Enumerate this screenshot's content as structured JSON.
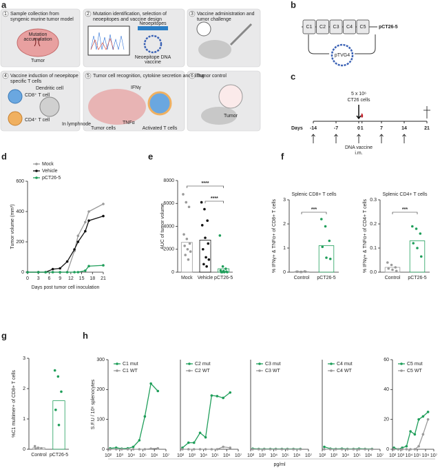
{
  "panel_labels": [
    "a",
    "b",
    "c",
    "d",
    "e",
    "f",
    "g",
    "h"
  ],
  "panel_a": {
    "steps": [
      {
        "number": 1,
        "lines": [
          "Sample collection from",
          "syngenic murine tumor model"
        ]
      },
      {
        "number": 2,
        "lines": [
          "Mutation identification, selection of",
          "neoepitopes and vaccine design"
        ]
      },
      {
        "number": 3,
        "lines": [
          "Vaccine administration and",
          "tumor challenge"
        ]
      },
      {
        "number": 4,
        "lines": [
          "Vaccine induction of neoepitope",
          "specific T cells"
        ]
      },
      {
        "number": 5,
        "lines": [
          "Tumor cell recognition, cytokine secretion and killing"
        ]
      },
      {
        "number": 6,
        "lines": [
          "Tumor control"
        ]
      }
    ],
    "labels": [
      "Mutation",
      "accumulation",
      "Tumor",
      "Neoepitopes",
      "Neoepitope DNA",
      "vaccine",
      "Dendritic cell",
      "CD8⁺ T cell",
      "CD4⁺ T cell",
      "In lymphnode",
      "IFNγ",
      "TNFα",
      "Tumor cells",
      "Activated T cells",
      "Tumor"
    ]
  },
  "panel_b": {
    "segments": [
      "C1",
      "C2",
      "C3",
      "C4",
      "C5"
    ],
    "construct": "pCT26-5",
    "backbone": "pTVG4"
  },
  "panel_c": {
    "days_label": "Days",
    "days": [
      -14,
      -7,
      0,
      1,
      7,
      14,
      21
    ],
    "vaccine_days": [
      -14,
      -7,
      0,
      7,
      14
    ],
    "challenge_label": [
      "5 x 10⁶",
      "CT26 cells"
    ],
    "vaccine_label": [
      "DNA vaccine",
      "i.m."
    ]
  },
  "chart_data": [
    {
      "type": "line",
      "x": [
        0,
        3,
        5,
        7,
        9,
        11,
        13,
        14,
        16,
        17,
        21
      ],
      "xlim": [
        0,
        21
      ],
      "xticks": [
        0,
        3,
        6,
        9,
        12,
        15,
        18,
        21
      ],
      "ylim": [
        0,
        600
      ],
      "yticks": [
        0,
        200,
        400,
        600
      ],
      "xlabel": "Days post tumor cell inoculation",
      "ylabel": "Tumor volume (mm³)",
      "legend": "upper left",
      "series": [
        {
          "name": "Mock",
          "color": "#9a9a9a",
          "values": [
            0,
            0,
            0,
            0,
            0,
            0,
            140,
            240,
            330,
            400,
            450
          ]
        },
        {
          "name": "Vehicle",
          "color": "#111111",
          "values": [
            0,
            0,
            0,
            20,
            25,
            70,
            150,
            200,
            270,
            340,
            370
          ]
        },
        {
          "name": "pCT26-5",
          "color": "#1f9e5a",
          "values": [
            0,
            0,
            0,
            0,
            0,
            0,
            0,
            0,
            10,
            40,
            45
          ]
        }
      ]
    },
    {
      "type": "dot_bar",
      "categories": [
        "Mock",
        "Vehicle",
        "pCT26-5"
      ],
      "values": [
        2600,
        2800,
        300
      ],
      "colors": [
        "#9a9a9a",
        "#111111",
        "#1f9e5a"
      ],
      "points": [
        [
          6800,
          6100,
          5700,
          3300,
          2900,
          2500,
          2300,
          2000,
          1800,
          1500,
          1100
        ],
        [
          6100,
          5500,
          4500,
          4100,
          3000,
          2500,
          2000,
          1300,
          1100,
          700,
          500
        ],
        [
          3200,
          500,
          300,
          150,
          100,
          50,
          0,
          0,
          0,
          0
        ]
      ],
      "ylim": [
        0,
        8000
      ],
      "yticks": [
        0,
        2000,
        4000,
        6000,
        8000
      ],
      "ylabel": "AUC of tumor volume",
      "annotations": [
        "****",
        "****"
      ]
    },
    {
      "type": "dot_bar",
      "title": "Splenic CD8+ T cells",
      "categories": [
        "Control",
        "pCT26-5"
      ],
      "values": [
        0.02,
        1.1
      ],
      "colors": [
        "#9a9a9a",
        "#1f9e5a"
      ],
      "points": [
        [
          0.02,
          0.01,
          0.03,
          0.02,
          0.01,
          0.02
        ],
        [
          2.2,
          1.9,
          1.3,
          1.05,
          0.6,
          0.55
        ]
      ],
      "ylim": [
        0,
        3
      ],
      "yticks": [
        0,
        1,
        2,
        3
      ],
      "ylabel": "% IFNγ+ & TNFα+ of CD8+ T cells",
      "annotations": [
        "***"
      ]
    },
    {
      "type": "dot_bar",
      "title": "Splenic CD4+ T cells",
      "categories": [
        "Control",
        "pCT26-5"
      ],
      "values": [
        0.02,
        0.13
      ],
      "colors": [
        "#9a9a9a",
        "#1f9e5a"
      ],
      "points": [
        [
          0.04,
          0.03,
          0.02,
          0.015,
          0.01,
          0.005
        ],
        [
          0.19,
          0.18,
          0.16,
          0.12,
          0.1,
          0.065
        ]
      ],
      "ylim": [
        0,
        0.3
      ],
      "yticks": [
        {
          "value": 0,
          "label": "0.0"
        },
        0.1,
        0.2,
        0.3
      ],
      "ylabel": "% IFNγ+ & TNFα+ of CD4+ T cells",
      "annotations": [
        "***"
      ]
    },
    {
      "type": "dot_bar",
      "categories": [
        "Control",
        "pCT26-5"
      ],
      "values": [
        0.05,
        1.6
      ],
      "colors": [
        "#9a9a9a",
        "#1f9e5a"
      ],
      "points": [
        [
          0.1,
          0.05,
          0.03,
          0.02
        ],
        [
          2.6,
          2.4,
          1.9,
          1.3,
          0.8
        ]
      ],
      "ylim": [
        0,
        3
      ],
      "yticks": [
        0,
        1,
        2,
        3
      ],
      "ylabel": "%C1 multimer+ of CD8+ T cells"
    },
    {
      "type": "line",
      "xscale": "log",
      "x": [
        150,
        500,
        1500,
        5000,
        15000,
        50000,
        150000,
        500000,
        2000000
      ],
      "xlim": [
        100,
        10000000
      ],
      "xticks": [
        {
          "value": 100,
          "label": "10²"
        },
        {
          "value": 1000,
          "label": "10³"
        },
        {
          "value": 10000,
          "label": "10⁴"
        },
        {
          "value": 100000,
          "label": "10⁵"
        },
        {
          "value": 1000000,
          "label": "10⁶"
        },
        {
          "value": 10000000,
          "label": "10⁷"
        }
      ],
      "ylim": [
        0,
        300
      ],
      "yticks": [
        0,
        100,
        200,
        300
      ],
      "ylabel": "S.F.U / 10⁶ splenocytes",
      "legend": "upper left",
      "series": [
        {
          "name": "C1 mut",
          "color": "#1f9e5a",
          "values": [
            3,
            5,
            2,
            3,
            8,
            30,
            110,
            220,
            195
          ]
        },
        {
          "name": "C1 WT",
          "color": "#9a9a9a",
          "values": [
            0,
            0,
            0,
            0,
            0,
            0,
            0,
            2,
            3
          ]
        }
      ]
    },
    {
      "type": "line",
      "xscale": "log",
      "x": [
        150,
        500,
        1500,
        5000,
        15000,
        50000,
        150000,
        500000,
        2000000
      ],
      "xlim": [
        100,
        10000000
      ],
      "xticks": [
        {
          "value": 100,
          "label": "10²"
        },
        {
          "value": 1000,
          "label": "10³"
        },
        {
          "value": 10000,
          "label": "10⁴"
        },
        {
          "value": 100000,
          "label": "10⁵"
        },
        {
          "value": 1000000,
          "label": "10⁶"
        },
        {
          "value": 10000000,
          "label": "10⁷"
        }
      ],
      "ylim": [
        0,
        300
      ],
      "legend": "upper left",
      "series": [
        {
          "name": "C2 mut",
          "color": "#1f9e5a",
          "values": [
            5,
            22,
            22,
            55,
            40,
            180,
            178,
            172,
            190
          ]
        },
        {
          "name": "C2 WT",
          "color": "#9a9a9a",
          "values": [
            0,
            0,
            0,
            0,
            0,
            0,
            0,
            8,
            5
          ]
        }
      ]
    },
    {
      "type": "line",
      "xscale": "log",
      "x": [
        150,
        500,
        1500,
        5000,
        15000,
        50000,
        150000,
        500000,
        2000000
      ],
      "xlim": [
        100,
        10000000
      ],
      "xticks": [
        {
          "value": 100,
          "label": "10²"
        },
        {
          "value": 1000,
          "label": "10³"
        },
        {
          "value": 10000,
          "label": "10⁴"
        },
        {
          "value": 100000,
          "label": "10⁵"
        },
        {
          "value": 1000000,
          "label": "10⁶"
        },
        {
          "value": 10000000,
          "label": "10⁷"
        }
      ],
      "ylim": [
        0,
        300
      ],
      "xlabel": "pg/ml",
      "legend": "upper left",
      "series": [
        {
          "name": "C3 mut",
          "color": "#1f9e5a",
          "values": [
            2,
            1,
            1,
            1,
            1,
            1,
            1,
            1,
            1
          ]
        },
        {
          "name": "C3 WT",
          "color": "#9a9a9a",
          "values": [
            0,
            0,
            0,
            0,
            0,
            0,
            0,
            0,
            0
          ]
        }
      ]
    },
    {
      "type": "line",
      "xscale": "log",
      "x": [
        150,
        500,
        1500,
        5000,
        15000,
        50000,
        150000,
        500000,
        2000000
      ],
      "xlim": [
        100,
        10000000
      ],
      "xticks": [
        {
          "value": 100,
          "label": "10²"
        },
        {
          "value": 1000,
          "label": "10³"
        },
        {
          "value": 10000,
          "label": "10⁴"
        },
        {
          "value": 100000,
          "label": "10⁵"
        },
        {
          "value": 1000000,
          "label": "10⁶"
        },
        {
          "value": 10000000,
          "label": "10⁷"
        }
      ],
      "ylim": [
        0,
        300
      ],
      "legend": "upper left",
      "series": [
        {
          "name": "C4 mut",
          "color": "#1f9e5a",
          "values": [
            8,
            2,
            1,
            2,
            1,
            1,
            2,
            1,
            1
          ]
        },
        {
          "name": "C4 WT",
          "color": "#9a9a9a",
          "values": [
            0,
            0,
            0,
            0,
            0,
            0,
            0,
            0,
            0
          ]
        }
      ]
    },
    {
      "type": "line",
      "xscale": "log",
      "x": [
        150,
        500,
        1500,
        5000,
        15000,
        50000,
        150000,
        500000,
        2000000
      ],
      "xlim": [
        100,
        10000000
      ],
      "xticks": [
        {
          "value": 100,
          "label": "10²"
        },
        {
          "value": 1000,
          "label": "10³"
        },
        {
          "value": 10000,
          "label": "10⁴"
        },
        {
          "value": 100000,
          "label": "10⁵"
        },
        {
          "value": 1000000,
          "label": "10⁶"
        },
        {
          "value": 10000000,
          "label": "10⁷"
        }
      ],
      "ylim": [
        0,
        60
      ],
      "yticks": [
        0,
        20,
        40,
        60
      ],
      "legend": "upper left",
      "series": [
        {
          "name": "C5 mut",
          "color": "#1f9e5a",
          "values": [
            1,
            0,
            1,
            2,
            12,
            10,
            20,
            22,
            25
          ]
        },
        {
          "name": "C5 WT",
          "color": "#9a9a9a",
          "values": [
            0,
            0,
            0,
            0,
            0,
            0,
            2,
            10,
            20
          ]
        }
      ]
    }
  ]
}
